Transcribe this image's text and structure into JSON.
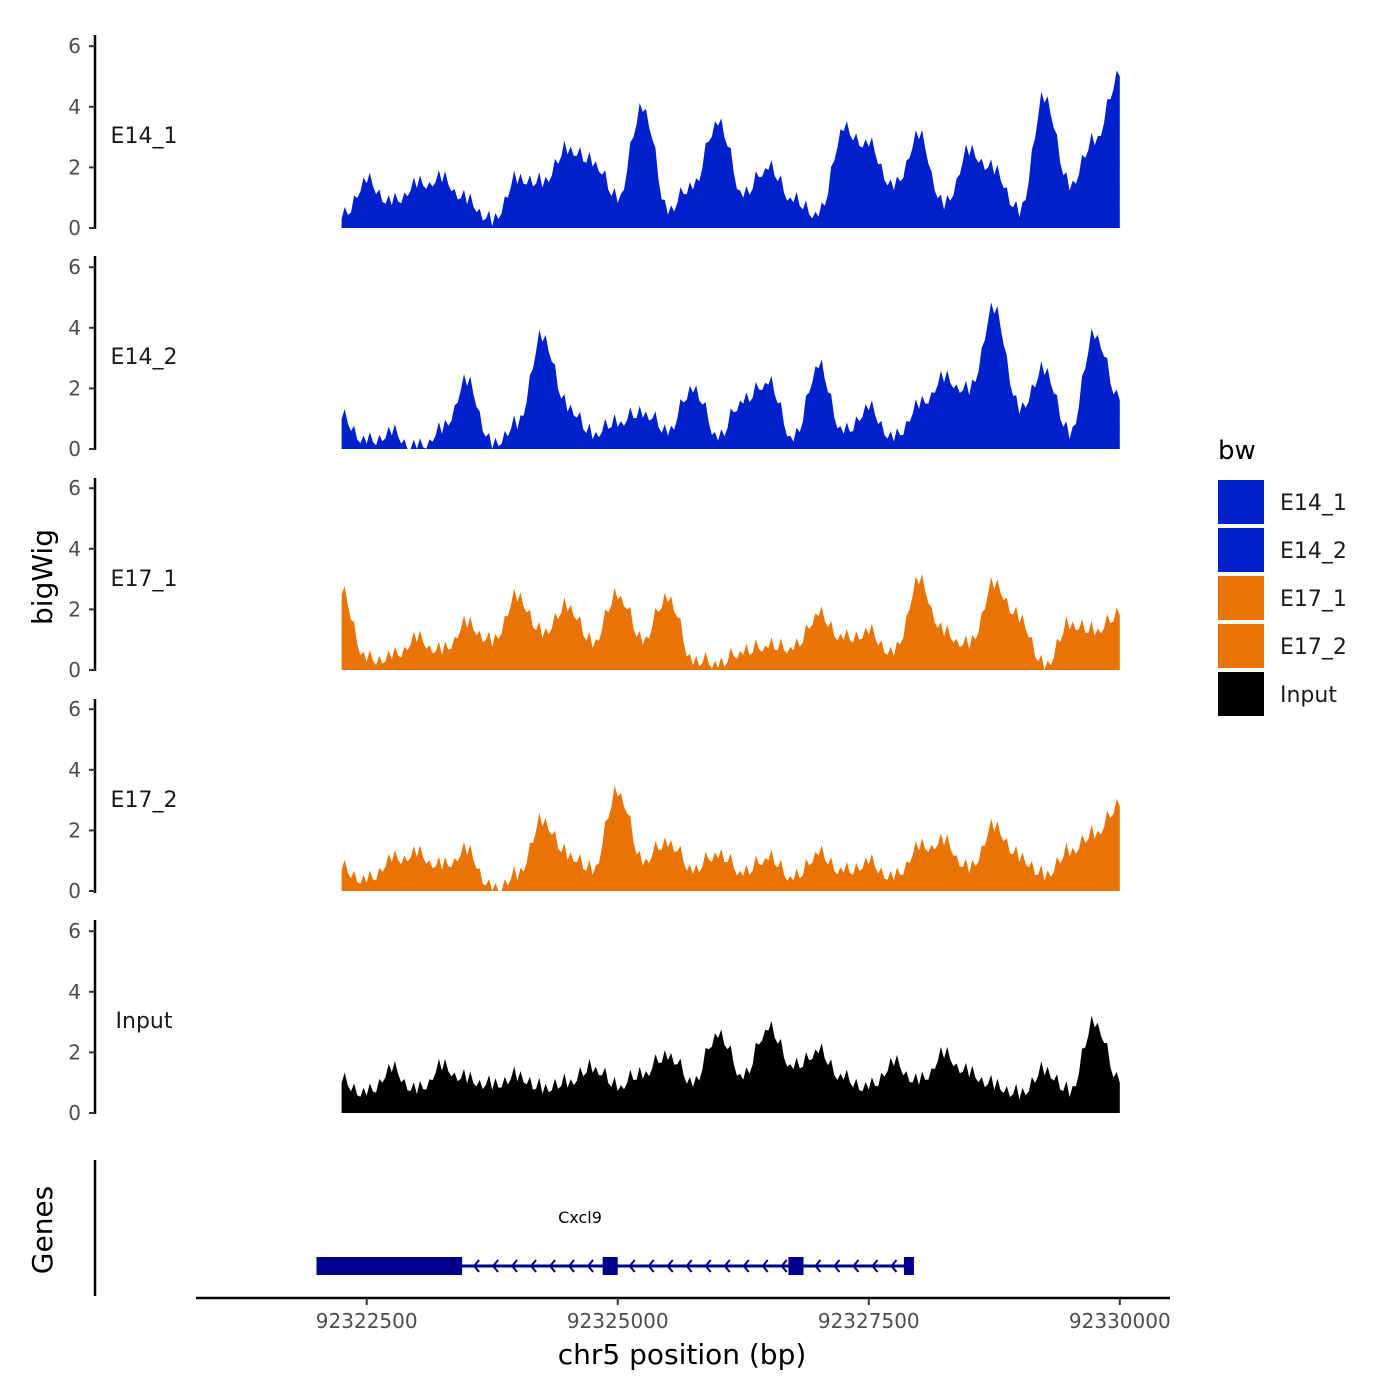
{
  "chart_data": {
    "type": "area",
    "title": "",
    "xlabel": "chr5 position (bp)",
    "ylabel": "bigWig",
    "genes_label": "Genes",
    "chromosome": "chr5",
    "xlim": [
      92320800,
      92330500
    ],
    "ylim": [
      0,
      6.2
    ],
    "x_ticks": [
      92322500,
      92325000,
      92327500,
      92330000
    ],
    "y_ticks": [
      0,
      2,
      4,
      6
    ],
    "legend": {
      "title": "bw",
      "position": "right",
      "entries": [
        {
          "label": "E14_1",
          "color": "#0020CC"
        },
        {
          "label": "E14_2",
          "color": "#0020CC"
        },
        {
          "label": "E17_1",
          "color": "#E87408"
        },
        {
          "label": "E17_2",
          "color": "#E87408"
        },
        {
          "label": "Input",
          "color": "#000000"
        }
      ]
    },
    "x": [
      92322250,
      92322500,
      92322750,
      92323000,
      92323250,
      92323500,
      92323750,
      92324000,
      92324250,
      92324500,
      92324750,
      92325000,
      92325250,
      92325500,
      92325750,
      92326000,
      92326250,
      92326500,
      92326750,
      92327000,
      92327250,
      92327500,
      92327750,
      92328000,
      92328250,
      92328500,
      92328750,
      92329000,
      92329250,
      92329500,
      92329750,
      92330000
    ],
    "series": [
      {
        "name": "E14_1",
        "color": "#0020CC",
        "values": [
          0.3,
          1.5,
          0.8,
          1.4,
          1.6,
          0.9,
          0.2,
          1.6,
          1.5,
          2.6,
          2.2,
          1.0,
          4.0,
          0.6,
          1.4,
          3.5,
          1.1,
          2.0,
          0.9,
          0.4,
          3.2,
          2.7,
          1.3,
          3.0,
          0.7,
          2.5,
          1.9,
          0.5,
          4.3,
          1.4,
          2.9,
          5.0
        ]
      },
      {
        "name": "E14_2",
        "color": "#0020CC",
        "values": [
          1.0,
          0.2,
          0.5,
          0.0,
          0.6,
          2.2,
          0.1,
          0.8,
          3.7,
          1.4,
          0.5,
          0.9,
          1.2,
          0.6,
          2.0,
          0.4,
          1.6,
          2.2,
          0.3,
          2.7,
          0.5,
          1.3,
          0.3,
          1.4,
          2.3,
          1.9,
          4.6,
          1.3,
          2.6,
          0.5,
          3.8,
          1.6
        ]
      },
      {
        "name": "E17_1",
        "color": "#E87408",
        "values": [
          2.5,
          0.3,
          0.4,
          1.0,
          0.6,
          1.5,
          0.9,
          2.4,
          1.2,
          2.1,
          0.9,
          2.5,
          1.0,
          2.4,
          0.3,
          0.2,
          0.6,
          0.8,
          0.7,
          1.8,
          1.0,
          1.2,
          0.5,
          2.9,
          1.2,
          0.8,
          2.8,
          1.7,
          0.1,
          1.5,
          1.3,
          1.8
        ]
      },
      {
        "name": "E17_2",
        "color": "#E87408",
        "values": [
          0.7,
          0.3,
          1.0,
          1.2,
          0.8,
          1.3,
          0.0,
          0.5,
          2.3,
          1.2,
          0.7,
          3.3,
          1.0,
          1.6,
          0.7,
          1.2,
          0.6,
          1.1,
          0.4,
          1.2,
          0.6,
          0.9,
          0.4,
          1.4,
          1.6,
          0.7,
          2.1,
          1.1,
          0.5,
          1.3,
          1.9,
          2.8
        ]
      },
      {
        "name": "Input",
        "color": "#000000",
        "values": [
          1.0,
          0.6,
          1.4,
          0.7,
          1.5,
          1.1,
          0.9,
          1.2,
          0.8,
          1.0,
          1.5,
          0.9,
          1.3,
          1.9,
          1.0,
          2.6,
          1.2,
          2.8,
          1.5,
          2.0,
          1.1,
          0.8,
          1.6,
          1.0,
          1.9,
          1.3,
          0.9,
          0.6,
          1.4,
          0.7,
          3.0,
          1.0
        ]
      }
    ],
    "gene": {
      "name": "Cxcl9",
      "strand": "-",
      "start": 92322000,
      "end": 92327950,
      "exons": [
        [
          92322000,
          92323450
        ],
        [
          92324850,
          92325000
        ],
        [
          92326700,
          92326850
        ],
        [
          92327850,
          92327950
        ]
      ]
    }
  }
}
